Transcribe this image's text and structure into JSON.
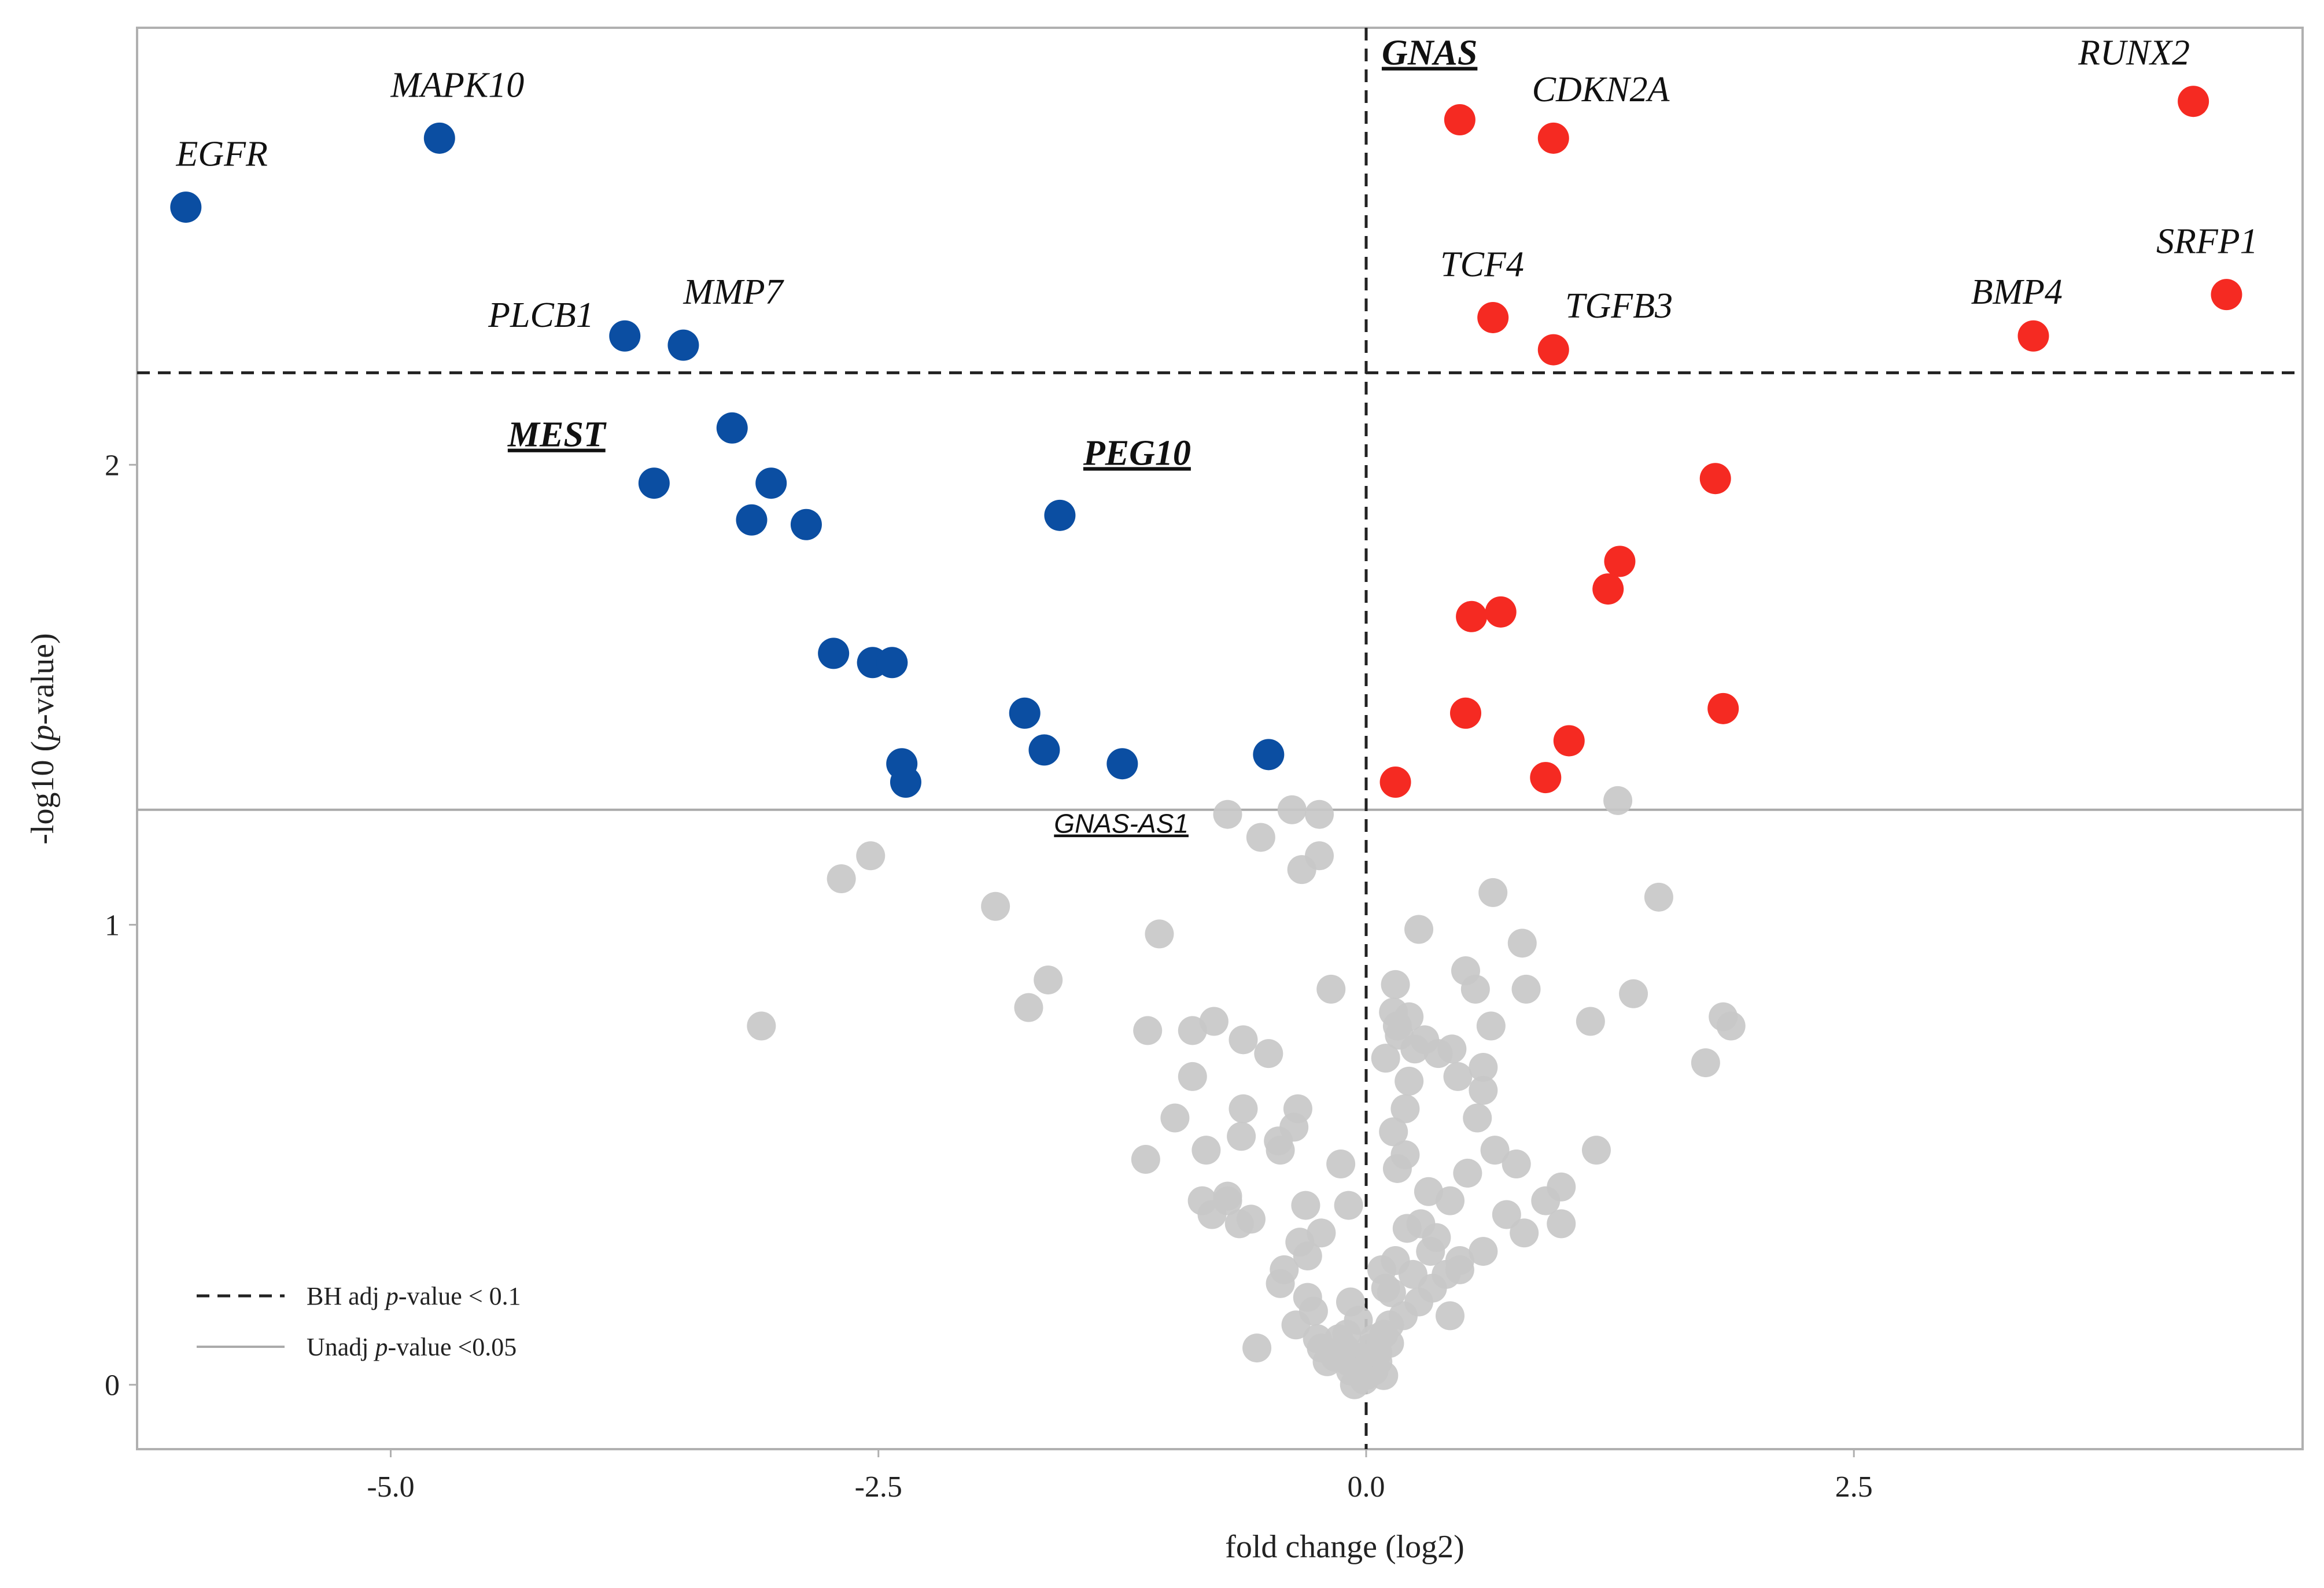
{
  "chart_data": {
    "type": "scatter",
    "xlabel": "fold change (log2)",
    "ylabel": "-log10 (p-value)",
    "xlim": [
      -6.3,
      4.8
    ],
    "ylim": [
      -0.14,
      2.95
    ],
    "x_ticks": [
      {
        "value": -5.0,
        "label": "-5.0"
      },
      {
        "value": -2.5,
        "label": "-2.5"
      },
      {
        "value": 0.0,
        "label": "0.0"
      },
      {
        "value": 2.5,
        "label": "2.5"
      }
    ],
    "y_ticks": [
      {
        "value": 0,
        "label": "0"
      },
      {
        "value": 1,
        "label": "1"
      },
      {
        "value": 2,
        "label": "2"
      }
    ],
    "thresholds": {
      "bh_adj_y": 2.2,
      "unadj_y": 1.25,
      "vertical_x": 0.0
    },
    "legend": {
      "placement": "bottom-left",
      "items": [
        {
          "style": "dashed",
          "label_pre": "BH adj ",
          "label_italic": "p",
          "label_post": "-value < 0.1"
        },
        {
          "style": "solid",
          "label_pre": "Unadj ",
          "label_italic": "p",
          "label_post": "-value <0.05"
        }
      ]
    },
    "colors": {
      "down": "#0b4ea2",
      "up": "#f52a22",
      "ns": "#c8c8c8",
      "bh_line": "#222222",
      "unadj_line": "#aaaaaa"
    },
    "labels": [
      {
        "text": "EGFR",
        "x": -6.1,
        "y": 2.65,
        "style": "normal"
      },
      {
        "text": "MAPK10",
        "x": -5.0,
        "y": 2.8,
        "style": "normal"
      },
      {
        "text": "PLCB1",
        "x": -4.5,
        "y": 2.3,
        "style": "normal"
      },
      {
        "text": "MMP7",
        "x": -3.5,
        "y": 2.35,
        "style": "normal"
      },
      {
        "text": "MEST",
        "x": -4.4,
        "y": 2.04,
        "style": "em"
      },
      {
        "text": "PEG10",
        "x": -1.45,
        "y": 2.0,
        "style": "em"
      },
      {
        "text": "GNAS",
        "x": 0.08,
        "y": 2.87,
        "style": "em"
      },
      {
        "text": "CDKN2A",
        "x": 0.85,
        "y": 2.79,
        "style": "normal"
      },
      {
        "text": "TCF4",
        "x": 0.38,
        "y": 2.41,
        "style": "normal"
      },
      {
        "text": "TGFB3",
        "x": 1.02,
        "y": 2.32,
        "style": "normal"
      },
      {
        "text": "RUNX2",
        "x": 3.65,
        "y": 2.87,
        "style": "normal"
      },
      {
        "text": "SRFP1",
        "x": 4.05,
        "y": 2.46,
        "style": "normal"
      },
      {
        "text": "BMP4",
        "x": 3.1,
        "y": 2.35,
        "style": "normal"
      },
      {
        "text": "GNAS-AS1",
        "x": -1.6,
        "y": 1.2,
        "style": "small"
      }
    ],
    "series": [
      {
        "group": "down",
        "x": [
          -6.05,
          -4.75,
          -3.8,
          -3.5,
          -3.25,
          -3.65,
          -3.05,
          -3.15,
          -2.87,
          -2.73,
          -2.53,
          -2.43,
          -2.38,
          -2.36,
          -1.57,
          -1.75,
          -1.65,
          -1.25,
          -0.5
        ],
        "y": [
          2.56,
          2.71,
          2.28,
          2.26,
          2.08,
          1.96,
          1.96,
          1.88,
          1.87,
          1.59,
          1.57,
          1.57,
          1.35,
          1.31,
          1.89,
          1.46,
          1.38,
          1.35,
          1.37
        ]
      },
      {
        "group": "up",
        "x": [
          0.48,
          0.96,
          4.24,
          0.65,
          0.96,
          4.41,
          3.42,
          1.79,
          1.3,
          1.24,
          0.54,
          0.69,
          1.83,
          0.51,
          1.04,
          0.92,
          0.15
        ],
        "y": [
          2.75,
          2.71,
          2.79,
          2.32,
          2.25,
          2.37,
          2.28,
          1.97,
          1.79,
          1.73,
          1.67,
          1.68,
          1.47,
          1.46,
          1.4,
          1.32,
          1.31
        ]
      },
      {
        "group": "ns",
        "x": [
          -0.71,
          -0.38,
          -0.24,
          -0.54,
          -0.24,
          -0.33,
          -2.54,
          -2.69,
          -1.9,
          -1.06,
          -1.63,
          -1.73,
          -3.1,
          -1.12,
          -0.89,
          -0.78,
          -0.63,
          -0.5,
          -0.18,
          -0.89,
          -0.98,
          -0.63,
          -0.35,
          -0.82,
          -0.64,
          -0.37,
          -1.13,
          -0.71,
          -0.79,
          -0.65,
          -0.45,
          -0.44,
          -0.84,
          -0.71,
          -0.31,
          -0.59,
          -0.23,
          -0.34,
          -0.09,
          -0.13,
          -0.42,
          -0.3,
          -0.44,
          -0.3,
          -0.56,
          -0.36,
          -0.27,
          -0.1,
          -0.04,
          -0.08,
          -0.14,
          -0.23,
          -0.16,
          -0.09,
          -0.03,
          0.0,
          0.04,
          0.06,
          0.09,
          0.12,
          0.19,
          0.27,
          0.34,
          0.41,
          0.48,
          0.6,
          0.72,
          0.81,
          0.92,
          1.0,
          1.18,
          0.66,
          0.77,
          0.82,
          0.15,
          0.14,
          0.1,
          0.25,
          0.17,
          0.16,
          0.22,
          0.3,
          0.37,
          0.47,
          0.44,
          0.56,
          0.64,
          0.8,
          1.0,
          1.29,
          1.37,
          1.15,
          1.87,
          1.5,
          1.74,
          1.83,
          0.22,
          0.2,
          0.16,
          0.32,
          0.43,
          0.28,
          0.2,
          0.14,
          0.57,
          0.6,
          0.27,
          0.52,
          0.51,
          0.6,
          0.65,
          0.36,
          0.48,
          0.33,
          0.21,
          0.15,
          0.08,
          0.1,
          0.24,
          0.12,
          0.06,
          0.02,
          -0.02,
          -0.04,
          -0.08,
          -0.11,
          -0.15,
          -0.2,
          -0.25,
          -0.06,
          -0.01,
          0.04,
          0.13,
          0.09,
          0.43
        ],
        "y": [
          1.24,
          1.25,
          1.24,
          1.19,
          1.15,
          1.12,
          1.15,
          1.1,
          1.04,
          0.98,
          0.88,
          0.82,
          0.78,
          0.77,
          0.77,
          0.79,
          0.75,
          0.72,
          0.86,
          0.67,
          0.58,
          0.6,
          0.6,
          0.51,
          0.54,
          0.56,
          0.49,
          0.4,
          0.37,
          0.35,
          0.53,
          0.51,
          0.4,
          0.41,
          0.39,
          0.36,
          0.33,
          0.31,
          0.39,
          0.48,
          0.25,
          0.28,
          0.22,
          0.19,
          0.08,
          0.13,
          0.16,
          0.11,
          0.14,
          0.18,
          0.1,
          0.08,
          0.06,
          0.05,
          0.04,
          0.02,
          0.03,
          0.07,
          0.11,
          0.13,
          0.15,
          0.18,
          0.21,
          0.24,
          0.27,
          0.29,
          0.37,
          0.33,
          0.4,
          0.43,
          0.51,
          0.51,
          0.48,
          0.86,
          0.87,
          0.81,
          0.71,
          0.73,
          0.76,
          0.78,
          0.8,
          0.75,
          0.72,
          0.67,
          0.73,
          0.86,
          0.78,
          0.96,
          0.35,
          1.27,
          0.85,
          0.79,
          0.78,
          1.06,
          0.7,
          0.8,
          0.66,
          0.6,
          0.47,
          0.42,
          0.4,
          0.35,
          0.5,
          0.55,
          0.58,
          0.64,
          0.99,
          0.46,
          0.9,
          0.69,
          1.07,
          0.32,
          0.25,
          0.29,
          0.34,
          0.27,
          0.25,
          0.21,
          0.24,
          0.09,
          0.05,
          0.08,
          0.04,
          0.06,
          0.03,
          0.08,
          0.07,
          0.05,
          0.1,
          0.0,
          0.01,
          0.1,
          0.2,
          0.02,
          0.15
        ]
      }
    ]
  }
}
